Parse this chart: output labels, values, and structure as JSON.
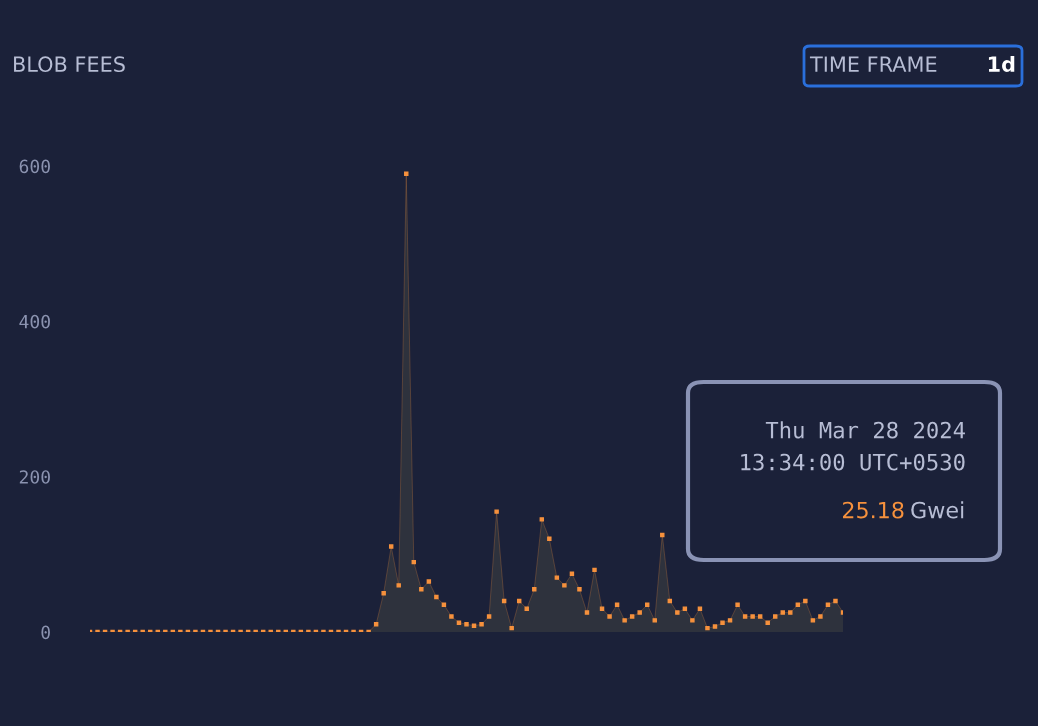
{
  "chart_data": {
    "type": "area",
    "title": "BLOB FEES",
    "categories": [
      null,
      null,
      null,
      null,
      null,
      null,
      null,
      null,
      null,
      null,
      null,
      null,
      null,
      null,
      null,
      null,
      null,
      null,
      null,
      null,
      null,
      null,
      null,
      null,
      null,
      null,
      null,
      null,
      null,
      null,
      null,
      null,
      null,
      null,
      null,
      null,
      null,
      null,
      null,
      null,
      null,
      null,
      null,
      null,
      null,
      null,
      null,
      null,
      null,
      null,
      null,
      null,
      null,
      null,
      null,
      null,
      null,
      null,
      null,
      null,
      null,
      null,
      null,
      null,
      null,
      null,
      null,
      null,
      null,
      null,
      null,
      null,
      null,
      null,
      null,
      null,
      null,
      null,
      null,
      null,
      null,
      null,
      null,
      null,
      null,
      null,
      null,
      null,
      null,
      null,
      null,
      null,
      null,
      null,
      null,
      null,
      null,
      null,
      null,
      null,
      null
    ],
    "series": [
      {
        "color": "#f6913d",
        "values": [
          0,
          0,
          0,
          0,
          0,
          0,
          0,
          0,
          0,
          0,
          0,
          0,
          0,
          0,
          0,
          0,
          0,
          0,
          0,
          0,
          0,
          0,
          0,
          0,
          0,
          0,
          0,
          0,
          0,
          0,
          0,
          0,
          0,
          0,
          0,
          0,
          0,
          0,
          10,
          50,
          110,
          60,
          590,
          90,
          55,
          65,
          45,
          35,
          20,
          12,
          10,
          8,
          10,
          20,
          155,
          40,
          5,
          40,
          30,
          55,
          145,
          120,
          70,
          60,
          75,
          55,
          25,
          80,
          30,
          20,
          35,
          15,
          20,
          25,
          35,
          15,
          125,
          40,
          25,
          30,
          15,
          30,
          5,
          7,
          12,
          15,
          35,
          20,
          20,
          20,
          12,
          20,
          25,
          25,
          35,
          40,
          15,
          20,
          35,
          40,
          25.18
        ]
      }
    ],
    "ylim": [
      0,
      600
    ],
    "yticks": [
      0,
      200,
      400,
      600
    ],
    "grid": false,
    "legend": false,
    "marker": "square",
    "annotations": [
      "TIME FRAME",
      "1d",
      "Thu Mar 28 2024",
      "13:34:00 UTC+0530",
      "25.18",
      "Gwei"
    ]
  }
}
